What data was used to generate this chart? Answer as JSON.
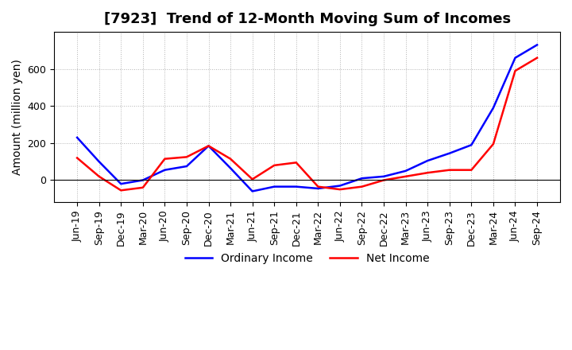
{
  "title": "[7923]  Trend of 12-Month Moving Sum of Incomes",
  "ylabel": "Amount (million yen)",
  "legend_labels": [
    "Ordinary Income",
    "Net Income"
  ],
  "line_colors": [
    "blue",
    "red"
  ],
  "x_labels": [
    "Jun-19",
    "Sep-19",
    "Dec-19",
    "Mar-20",
    "Jun-20",
    "Sep-20",
    "Dec-20",
    "Mar-21",
    "Jun-21",
    "Sep-21",
    "Dec-21",
    "Mar-22",
    "Jun-22",
    "Sep-22",
    "Dec-22",
    "Mar-23",
    "Jun-23",
    "Sep-23",
    "Dec-23",
    "Mar-24",
    "Jun-24",
    "Sep-24"
  ],
  "ordinary_income": [
    230,
    100,
    -20,
    0,
    55,
    75,
    185,
    65,
    -60,
    -35,
    -35,
    -45,
    -30,
    10,
    20,
    50,
    105,
    145,
    190,
    390,
    660,
    730
  ],
  "net_income": [
    120,
    20,
    -55,
    -40,
    115,
    125,
    185,
    115,
    5,
    80,
    95,
    -35,
    -50,
    -35,
    0,
    20,
    40,
    55,
    55,
    195,
    590,
    660
  ],
  "ylim": [
    -120,
    800
  ],
  "yticks": [
    0,
    200,
    400,
    600
  ],
  "background_color": "#ffffff",
  "grid_color": "#aaaaaa",
  "title_fontsize": 13,
  "label_fontsize": 10,
  "tick_fontsize": 9
}
